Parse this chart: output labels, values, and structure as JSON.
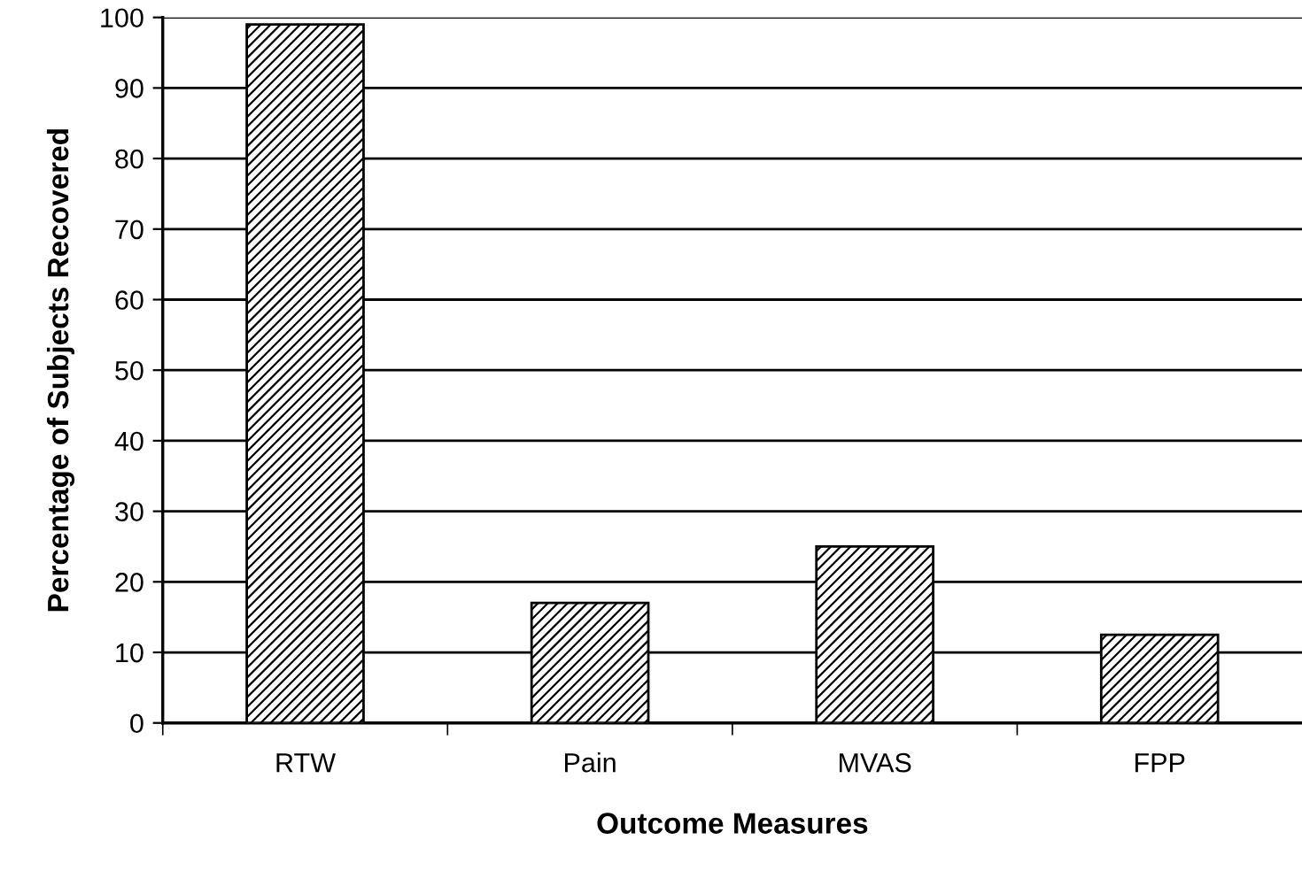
{
  "chart_data": {
    "type": "bar",
    "xlabel": "Outcome Measures",
    "ylabel": "Percentage of Subjects Recovered",
    "categories": [
      "RTW",
      "Pain",
      "MVAS",
      "FPP"
    ],
    "values": [
      99,
      17,
      25,
      12.5
    ],
    "color": "#000000",
    "ylim": [
      0,
      100
    ],
    "yticks": [
      0,
      10,
      20,
      30,
      40,
      50,
      60,
      70,
      80,
      90,
      100
    ],
    "grid": "y",
    "legend": false
  }
}
